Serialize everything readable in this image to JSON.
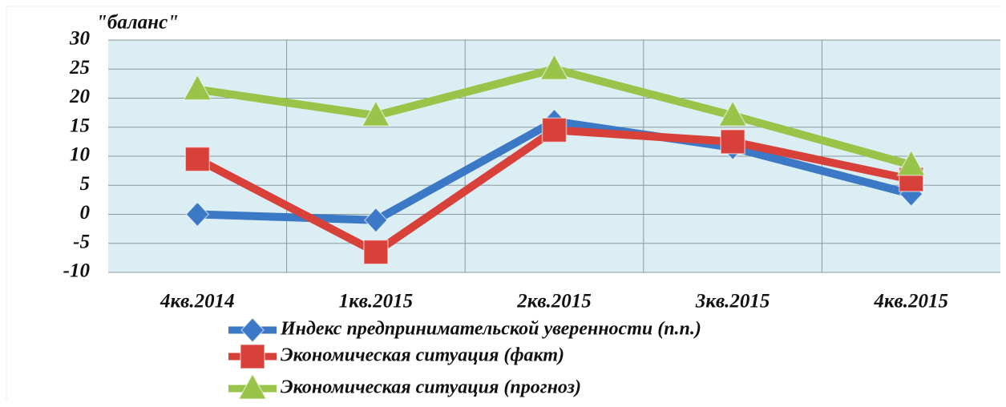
{
  "chart_data": {
    "type": "line",
    "ylabel": "\"баланс\"",
    "categories": [
      "4кв.2014",
      "1кв.2015",
      "2кв.2015",
      "3кв.2015",
      "4кв.2015"
    ],
    "series": [
      {
        "name": "Индекс предпринимательской уверенности (п.п.)",
        "color": "#3b78c6",
        "marker": "diamond",
        "values": [
          0,
          -1,
          16,
          11.5,
          3.5
        ]
      },
      {
        "name": "Экономическая ситуация (факт)",
        "color": "#d8403a",
        "marker": "square",
        "values": [
          9.5,
          -6.5,
          14.5,
          12.5,
          6
        ]
      },
      {
        "name": "Экономическая ситуация (прогноз)",
        "color": "#98c44a",
        "marker": "triangle",
        "values": [
          21.5,
          17,
          25,
          17,
          8.5
        ]
      }
    ],
    "ylim": [
      -10,
      30
    ],
    "yticks": [
      -10,
      -5,
      0,
      5,
      10,
      15,
      20,
      25,
      30
    ],
    "grid": true
  }
}
